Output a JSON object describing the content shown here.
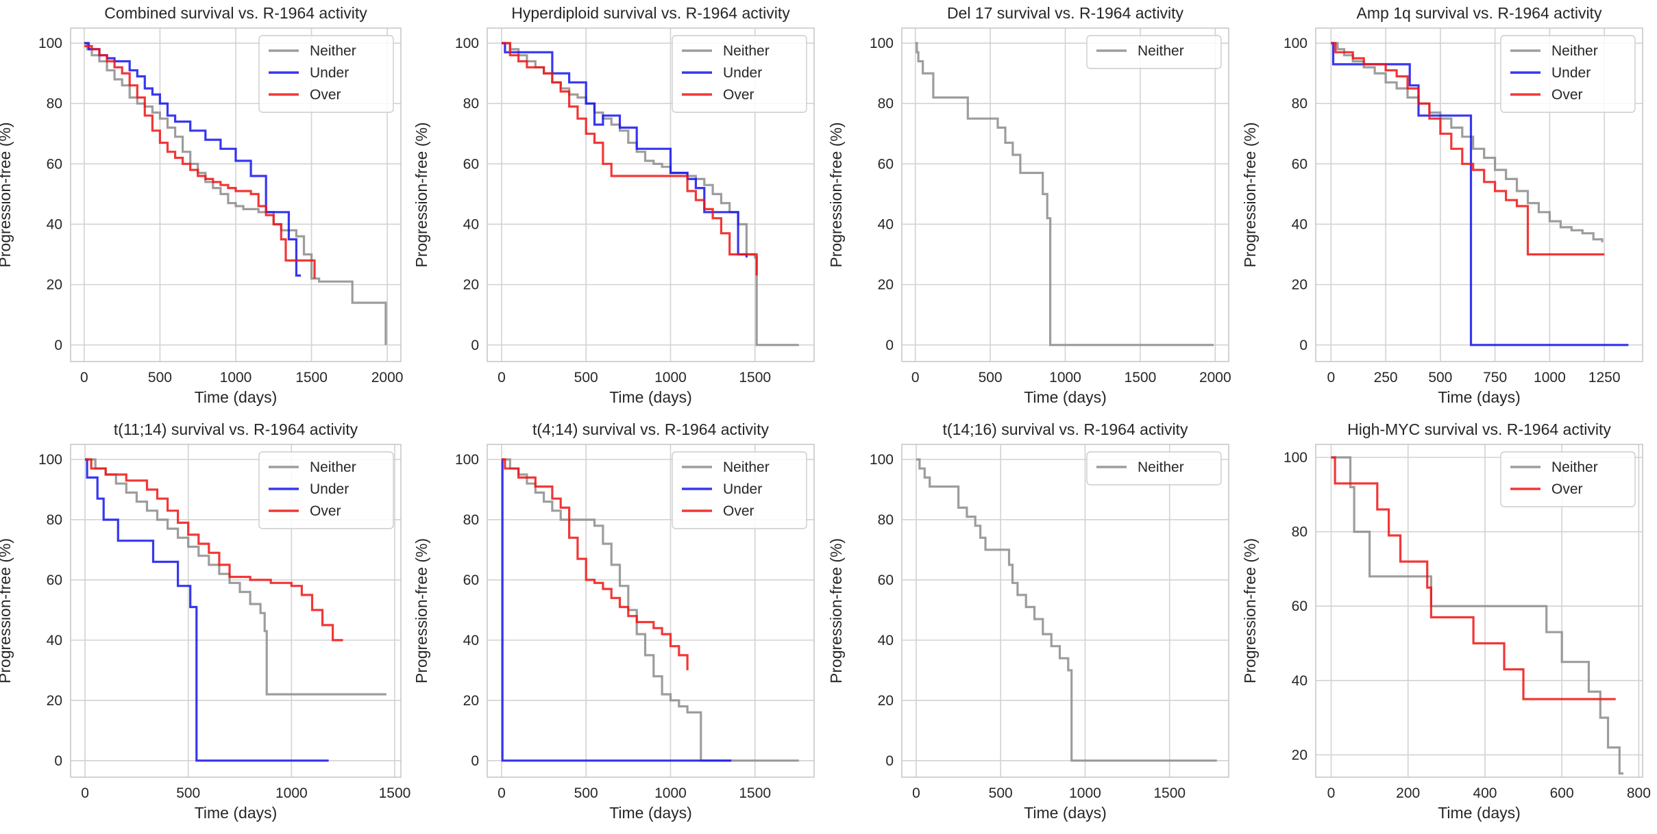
{
  "colors": {
    "Neither": "#8c8c8c",
    "Under": "#1414ee",
    "Over": "#f01414"
  },
  "chart_data": [
    {
      "type": "line",
      "title": "Combined survival vs. R-1964 activity",
      "xlabel": "Time (days)",
      "ylabel": "Progression-free (%)",
      "xlim": [
        -90,
        2090
      ],
      "ylim": [
        -5.5,
        105
      ],
      "xticks": [
        0,
        500,
        1000,
        1500,
        2000
      ],
      "yticks": [
        0,
        20,
        40,
        60,
        80,
        100
      ],
      "grid": true,
      "legend": "top-right",
      "series": [
        {
          "name": "Neither",
          "x": [
            0,
            20,
            50,
            100,
            150,
            200,
            250,
            300,
            350,
            400,
            450,
            500,
            550,
            600,
            650,
            700,
            750,
            800,
            850,
            900,
            950,
            1000,
            1050,
            1100,
            1150,
            1200,
            1250,
            1300,
            1350,
            1400,
            1450,
            1500,
            1550,
            1600,
            1650,
            1700,
            1750,
            1770,
            1990
          ],
          "y": [
            100,
            98,
            96,
            94,
            91,
            88,
            86,
            82,
            80,
            79,
            77,
            75,
            72,
            69,
            64,
            60,
            57,
            54,
            52,
            50,
            47,
            46,
            45,
            45,
            44,
            44,
            40,
            38,
            38,
            36,
            30,
            22,
            21,
            21,
            21,
            21,
            21,
            14,
            0
          ]
        },
        {
          "name": "Under",
          "x": [
            0,
            30,
            100,
            150,
            200,
            300,
            350,
            400,
            450,
            500,
            550,
            600,
            700,
            800,
            900,
            1000,
            1100,
            1180,
            1200,
            1300,
            1350,
            1400,
            1430
          ],
          "y": [
            100,
            98,
            96,
            95,
            94,
            91,
            89,
            85,
            83,
            80,
            76,
            74,
            71,
            68,
            65,
            61,
            56,
            56,
            44,
            44,
            35,
            23,
            23
          ]
        },
        {
          "name": "Over",
          "x": [
            0,
            50,
            100,
            150,
            200,
            250,
            300,
            350,
            400,
            450,
            500,
            550,
            600,
            650,
            700,
            750,
            800,
            850,
            900,
            950,
            1000,
            1050,
            1100,
            1150,
            1200,
            1250,
            1300,
            1330,
            1400,
            1450,
            1500,
            1520
          ],
          "y": [
            99,
            98,
            96,
            94,
            92,
            90,
            86,
            82,
            76,
            71,
            67,
            64,
            62,
            60,
            58,
            56,
            55,
            54,
            53,
            52,
            51,
            51,
            50,
            46,
            43,
            40,
            35,
            28,
            28,
            28,
            28,
            22
          ]
        }
      ]
    },
    {
      "type": "line",
      "title": "Hyperdiploid survival vs. R-1964 activity",
      "xlabel": "Time (days)",
      "ylabel": "Progression-free (%)",
      "xlim": [
        -85,
        1850
      ],
      "ylim": [
        -5.5,
        105
      ],
      "xticks": [
        0,
        500,
        1000,
        1500
      ],
      "yticks": [
        0,
        20,
        40,
        60,
        80,
        100
      ],
      "grid": true,
      "legend": "top-right",
      "series": [
        {
          "name": "Neither",
          "x": [
            0,
            50,
            100,
            150,
            200,
            250,
            300,
            350,
            400,
            450,
            500,
            550,
            600,
            650,
            700,
            750,
            800,
            850,
            900,
            950,
            1000,
            1050,
            1100,
            1150,
            1200,
            1250,
            1300,
            1350,
            1400,
            1450,
            1500,
            1510,
            1760
          ],
          "y": [
            100,
            98,
            96,
            94,
            92,
            90,
            87,
            85,
            83,
            82,
            80,
            77,
            75,
            73,
            71,
            67,
            64,
            61,
            60,
            59,
            57,
            57,
            56,
            55,
            53,
            50,
            47,
            44,
            40,
            30,
            29,
            0,
            0
          ]
        },
        {
          "name": "Under",
          "x": [
            0,
            20,
            200,
            300,
            400,
            500,
            550,
            600,
            700,
            800,
            1000,
            1100,
            1150,
            1200,
            1400,
            1450
          ],
          "y": [
            100,
            97,
            97,
            90,
            87,
            80,
            73,
            76,
            72,
            65,
            57,
            55,
            52,
            44,
            30,
            29
          ]
        },
        {
          "name": "Over",
          "x": [
            0,
            50,
            100,
            150,
            250,
            300,
            350,
            400,
            450,
            500,
            550,
            600,
            650,
            1000,
            1100,
            1150,
            1200,
            1250,
            1300,
            1350,
            1450,
            1500,
            1510
          ],
          "y": [
            100,
            96,
            94,
            92,
            90,
            87,
            84,
            79,
            75,
            70,
            67,
            60,
            56,
            56,
            51,
            48,
            45,
            42,
            37,
            30,
            30,
            30,
            23
          ]
        }
      ]
    },
    {
      "type": "line",
      "title": "Del 17 survival vs. R-1964 activity",
      "xlabel": "Time (days)",
      "ylabel": "Progression-free (%)",
      "xlim": [
        -90,
        2090
      ],
      "ylim": [
        -5.5,
        105
      ],
      "xticks": [
        0,
        500,
        1000,
        1500,
        2000
      ],
      "yticks": [
        0,
        20,
        40,
        60,
        80,
        100
      ],
      "grid": true,
      "legend": "top-right",
      "series": [
        {
          "name": "Neither",
          "x": [
            0,
            10,
            20,
            50,
            120,
            350,
            550,
            600,
            650,
            700,
            850,
            880,
            900,
            1990
          ],
          "y": [
            100,
            97,
            94,
            90,
            82,
            75,
            72,
            67,
            63,
            57,
            50,
            42,
            0,
            0
          ]
        }
      ]
    },
    {
      "type": "line",
      "title": "Amp 1q survival vs. R-1964 activity",
      "xlabel": "Time (days)",
      "ylabel": "Progression-free (%)",
      "xlim": [
        -70,
        1425
      ],
      "ylim": [
        -5.5,
        105
      ],
      "xticks": [
        0,
        250,
        500,
        750,
        1000,
        1250
      ],
      "yticks": [
        0,
        20,
        40,
        60,
        80,
        100
      ],
      "grid": true,
      "legend": "top-right",
      "series": [
        {
          "name": "Neither",
          "x": [
            0,
            30,
            60,
            100,
            150,
            200,
            250,
            300,
            350,
            400,
            450,
            500,
            550,
            600,
            650,
            700,
            750,
            800,
            850,
            900,
            950,
            1000,
            1050,
            1100,
            1150,
            1200,
            1240
          ],
          "y": [
            100,
            98,
            96,
            94,
            92,
            90,
            87,
            85,
            82,
            80,
            77,
            75,
            72,
            69,
            65,
            62,
            58,
            55,
            51,
            47,
            44,
            41,
            39,
            38,
            37,
            35,
            34
          ]
        },
        {
          "name": "Under",
          "x": [
            0,
            10,
            320,
            360,
            400,
            480,
            630,
            640,
            1360
          ],
          "y": [
            100,
            93,
            93,
            86,
            76,
            76,
            76,
            0,
            0
          ]
        },
        {
          "name": "Over",
          "x": [
            0,
            20,
            100,
            150,
            250,
            300,
            350,
            400,
            450,
            500,
            550,
            600,
            650,
            700,
            750,
            800,
            850,
            900,
            1250
          ],
          "y": [
            100,
            97,
            95,
            93,
            91,
            89,
            85,
            80,
            75,
            70,
            65,
            60,
            58,
            54,
            51,
            48,
            46,
            30,
            30
          ]
        }
      ]
    },
    {
      "type": "line",
      "title": "t(11;14) survival vs. R-1964 activity",
      "xlabel": "Time (days)",
      "ylabel": "Progression-free (%)",
      "xlim": [
        -70,
        1530
      ],
      "ylim": [
        -5.5,
        105
      ],
      "xticks": [
        0,
        500,
        1000,
        1500
      ],
      "yticks": [
        0,
        20,
        40,
        60,
        80,
        100
      ],
      "grid": true,
      "legend": "top-right",
      "series": [
        {
          "name": "Neither",
          "x": [
            0,
            50,
            100,
            150,
            200,
            250,
            300,
            350,
            400,
            450,
            500,
            550,
            600,
            650,
            700,
            750,
            800,
            850,
            870,
            880,
            1460
          ],
          "y": [
            100,
            97,
            95,
            92,
            89,
            86,
            83,
            80,
            77,
            74,
            71,
            68,
            65,
            62,
            59,
            56,
            52,
            49,
            43,
            22,
            22
          ]
        },
        {
          "name": "Under",
          "x": [
            0,
            10,
            60,
            90,
            160,
            330,
            450,
            510,
            540,
            1180
          ],
          "y": [
            100,
            94,
            87,
            80,
            73,
            66,
            58,
            51,
            0,
            0
          ]
        },
        {
          "name": "Over",
          "x": [
            0,
            30,
            100,
            200,
            300,
            350,
            400,
            450,
            500,
            550,
            600,
            650,
            700,
            800,
            900,
            1000,
            1050,
            1100,
            1150,
            1200,
            1250
          ],
          "y": [
            100,
            97,
            95,
            93,
            90,
            87,
            83,
            79,
            75,
            72,
            69,
            65,
            61,
            60,
            59,
            58,
            55,
            50,
            45,
            40,
            40
          ]
        }
      ]
    },
    {
      "type": "line",
      "title": "t(4;14) survival vs. R-1964 activity",
      "xlabel": "Time (days)",
      "ylabel": "Progression-free (%)",
      "xlim": [
        -85,
        1850
      ],
      "ylim": [
        -5.5,
        105
      ],
      "xticks": [
        0,
        500,
        1000,
        1500
      ],
      "yticks": [
        0,
        20,
        40,
        60,
        80,
        100
      ],
      "grid": true,
      "legend": "top-right",
      "series": [
        {
          "name": "Neither",
          "x": [
            0,
            50,
            100,
            150,
            200,
            250,
            300,
            350,
            400,
            450,
            500,
            550,
            600,
            650,
            700,
            750,
            800,
            850,
            900,
            950,
            1000,
            1050,
            1100,
            1150,
            1180,
            1760
          ],
          "y": [
            100,
            97,
            95,
            92,
            89,
            86,
            83,
            80,
            80,
            80,
            80,
            78,
            72,
            65,
            58,
            50,
            42,
            35,
            28,
            22,
            20,
            18,
            16,
            16,
            0,
            0
          ]
        },
        {
          "name": "Under",
          "x": [
            0,
            5,
            1360
          ],
          "y": [
            100,
            0,
            0
          ]
        },
        {
          "name": "Over",
          "x": [
            0,
            20,
            100,
            200,
            300,
            350,
            400,
            450,
            500,
            550,
            600,
            650,
            700,
            750,
            800,
            900,
            950,
            1000,
            1050,
            1100
          ],
          "y": [
            100,
            97,
            94,
            91,
            87,
            84,
            74,
            67,
            60,
            59,
            57,
            54,
            51,
            48,
            46,
            44,
            42,
            38,
            35,
            30
          ]
        }
      ]
    },
    {
      "type": "line",
      "title": "t(14;16) survival vs. R-1964 activity",
      "xlabel": "Time (days)",
      "ylabel": "Progression-free (%)",
      "xlim": [
        -85,
        1850
      ],
      "ylim": [
        -5.5,
        105
      ],
      "xticks": [
        0,
        500,
        1000,
        1500
      ],
      "yticks": [
        0,
        20,
        40,
        60,
        80,
        100
      ],
      "grid": true,
      "legend": "top-right",
      "series": [
        {
          "name": "Neither",
          "x": [
            0,
            20,
            50,
            80,
            250,
            300,
            350,
            380,
            410,
            550,
            570,
            600,
            650,
            700,
            750,
            800,
            850,
            900,
            920,
            1780
          ],
          "y": [
            100,
            97,
            94,
            91,
            84,
            81,
            78,
            74,
            70,
            65,
            59,
            55,
            51,
            47,
            42,
            38,
            34,
            30,
            0,
            0
          ]
        }
      ]
    },
    {
      "type": "line",
      "title": "High-MYC survival vs. R-1964 activity",
      "xlabel": "Time (days)",
      "ylabel": "Progression-free (%)",
      "xlim": [
        -40,
        810
      ],
      "ylim": [
        14,
        103.5
      ],
      "xticks": [
        0,
        200,
        400,
        600,
        800
      ],
      "yticks": [
        20,
        40,
        60,
        80,
        100
      ],
      "grid": true,
      "legend": "top-right",
      "series": [
        {
          "name": "Neither",
          "x": [
            0,
            50,
            60,
            100,
            250,
            260,
            500,
            560,
            600,
            670,
            700,
            720,
            750,
            760
          ],
          "y": [
            100,
            92,
            80,
            68,
            68,
            60,
            60,
            53,
            45,
            37,
            30,
            22,
            15,
            15
          ]
        },
        {
          "name": "Over",
          "x": [
            0,
            10,
            120,
            150,
            180,
            250,
            260,
            370,
            450,
            500,
            740
          ],
          "y": [
            100,
            93,
            86,
            79,
            72,
            65,
            57,
            50,
            43,
            35,
            35
          ]
        }
      ]
    }
  ]
}
